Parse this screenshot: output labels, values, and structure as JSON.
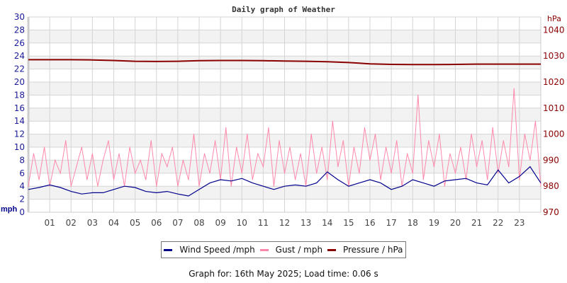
{
  "chart_data": {
    "type": "line",
    "title": "Daily graph of Weather",
    "left_axis": {
      "label": "mph",
      "ylim": [
        0,
        30
      ],
      "ticks": [
        0,
        2,
        4,
        6,
        8,
        10,
        12,
        14,
        16,
        18,
        20,
        22,
        24,
        26,
        28,
        30
      ],
      "color": "#1a1a9a"
    },
    "right_axis": {
      "label": "hPa",
      "ylim": [
        970,
        1045
      ],
      "ticks": [
        970,
        980,
        990,
        1000,
        1010,
        1020,
        1030,
        1040
      ],
      "color": "#8b0000"
    },
    "x_axis": {
      "xlim": [
        0,
        24
      ],
      "tick_labels": [
        "01",
        "02",
        "03",
        "04",
        "05",
        "06",
        "07",
        "08",
        "09",
        "10",
        "11",
        "12",
        "13",
        "14",
        "15",
        "16",
        "17",
        "18",
        "19",
        "20",
        "21",
        "22",
        "23"
      ]
    },
    "grid": true,
    "series": [
      {
        "name": "Wind Speed /mph",
        "color": "#00008b",
        "axis": "left",
        "step_hours": 0.5,
        "values": [
          3.5,
          3.8,
          4.2,
          3.8,
          3.2,
          2.8,
          3.0,
          3.0,
          3.5,
          4.0,
          3.8,
          3.2,
          3.0,
          3.2,
          2.8,
          2.5,
          3.5,
          4.5,
          5.0,
          4.8,
          5.2,
          4.5,
          4.0,
          3.5,
          4.0,
          4.2,
          4.0,
          4.5,
          6.2,
          5.0,
          4.0,
          4.5,
          5.0,
          4.5,
          3.5,
          4.0,
          5.0,
          4.5,
          4.0,
          4.8,
          5.0,
          5.2,
          4.5,
          4.2,
          6.5,
          4.5,
          5.5,
          7.0,
          4.5
        ]
      },
      {
        "name": "Gust / mph",
        "color": "#ff88aa",
        "axis": "left",
        "step_hours": 0.25,
        "values": [
          4,
          9,
          5,
          10,
          4,
          8,
          6,
          11,
          4,
          7,
          10,
          5,
          9,
          4,
          8,
          11,
          5,
          9,
          4,
          10,
          6,
          8,
          5,
          11,
          4,
          9,
          7,
          10,
          4,
          8,
          5,
          12,
          4,
          9,
          6,
          11,
          5,
          13,
          4,
          10,
          6,
          12,
          5,
          9,
          7,
          13,
          4,
          11,
          6,
          10,
          5,
          9,
          4,
          12,
          6,
          10,
          5,
          14,
          7,
          11,
          4,
          10,
          6,
          13,
          8,
          12,
          5,
          10,
          6,
          11,
          4,
          9,
          6,
          18,
          5,
          11,
          7,
          12,
          4,
          9,
          6,
          10,
          5,
          12,
          7,
          11,
          5,
          13,
          6,
          11,
          7,
          19,
          5,
          12,
          8,
          14,
          4
        ]
      },
      {
        "name": "Pressure / hPa",
        "color": "#8b0000",
        "axis": "right",
        "step_hours": 1,
        "values": [
          1028.6,
          1028.6,
          1028.6,
          1028.5,
          1028.3,
          1028.0,
          1027.9,
          1028.0,
          1028.2,
          1028.3,
          1028.3,
          1028.2,
          1028.1,
          1028.0,
          1027.8,
          1027.5,
          1027.0,
          1026.8,
          1026.7,
          1026.7,
          1026.8,
          1026.9,
          1026.9,
          1026.9,
          1026.9
        ]
      }
    ]
  },
  "footer": "Graph for: 16th May 2025; Load time: 0.06 s"
}
